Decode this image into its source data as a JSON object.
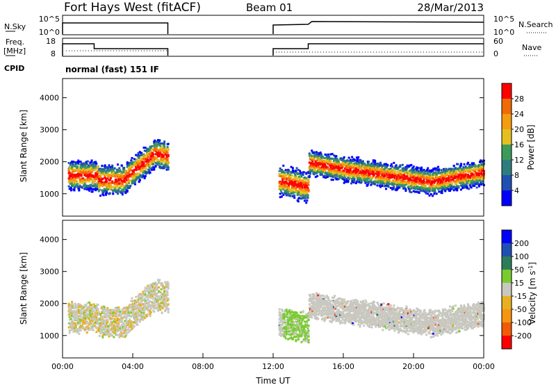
{
  "header": {
    "station": "Fort Hays West (fitACF)",
    "beam": "Beam 01",
    "date": "28/Mar/2013"
  },
  "nsky_panel": {
    "left_label": "N.Sky",
    "right_label": "N.Search",
    "left_ticks": [
      "10^5",
      "10^0"
    ],
    "right_ticks": [
      "10^5",
      "10^0"
    ]
  },
  "freq_panel": {
    "left_label_1": "Freq.",
    "left_label_2": "[MHz]",
    "right_label": "Nave",
    "left_ticks": [
      "18",
      "8"
    ],
    "right_ticks": [
      "60",
      "0"
    ]
  },
  "cpid": {
    "label": "CPID",
    "value": "normal (fast) 151 IF"
  },
  "colors": {
    "power": [
      "#0000ff",
      "#1f4fb0",
      "#2e7d7d",
      "#3c9a5a",
      "#e3c020",
      "#f59b10",
      "#f06a08",
      "#ff0000"
    ],
    "velocity": [
      "#ff0000",
      "#f05a08",
      "#f59510",
      "#e8b020",
      "#c8c8c0",
      "#7acb30",
      "#2e7d5a",
      "#1f4fb0",
      "#0000ff"
    ]
  },
  "chart_data": [
    {
      "type": "heatmap",
      "panel": "power",
      "ylabel": "Slant Range [km]",
      "xlabel": "",
      "y_ticks": [
        "1000",
        "2000",
        "3000",
        "4000"
      ],
      "ylim": [
        300,
        4600
      ],
      "colorbar_label": "Power [dB]",
      "colorbar_ticks": [
        "4",
        "8",
        "12",
        "16",
        "20",
        "24",
        "28"
      ],
      "colorbar_range": [
        0,
        32
      ]
    },
    {
      "type": "heatmap",
      "panel": "velocity",
      "ylabel": "Slant Range [km]",
      "xlabel": "Time UT",
      "x_ticks": [
        "00:00",
        "04:00",
        "08:00",
        "12:00",
        "16:00",
        "20:00",
        "00:00"
      ],
      "xlim": [
        0,
        24
      ],
      "y_ticks": [
        "1000",
        "2000",
        "3000",
        "4000"
      ],
      "ylim": [
        300,
        4600
      ],
      "colorbar_label": "Velocity [m s",
      "colorbar_label_sup": "-1",
      "colorbar_label_end": "]",
      "colorbar_ticks": [
        "200",
        "100",
        "50",
        "15",
        "-15",
        "-50",
        "-100",
        "-200"
      ]
    }
  ]
}
